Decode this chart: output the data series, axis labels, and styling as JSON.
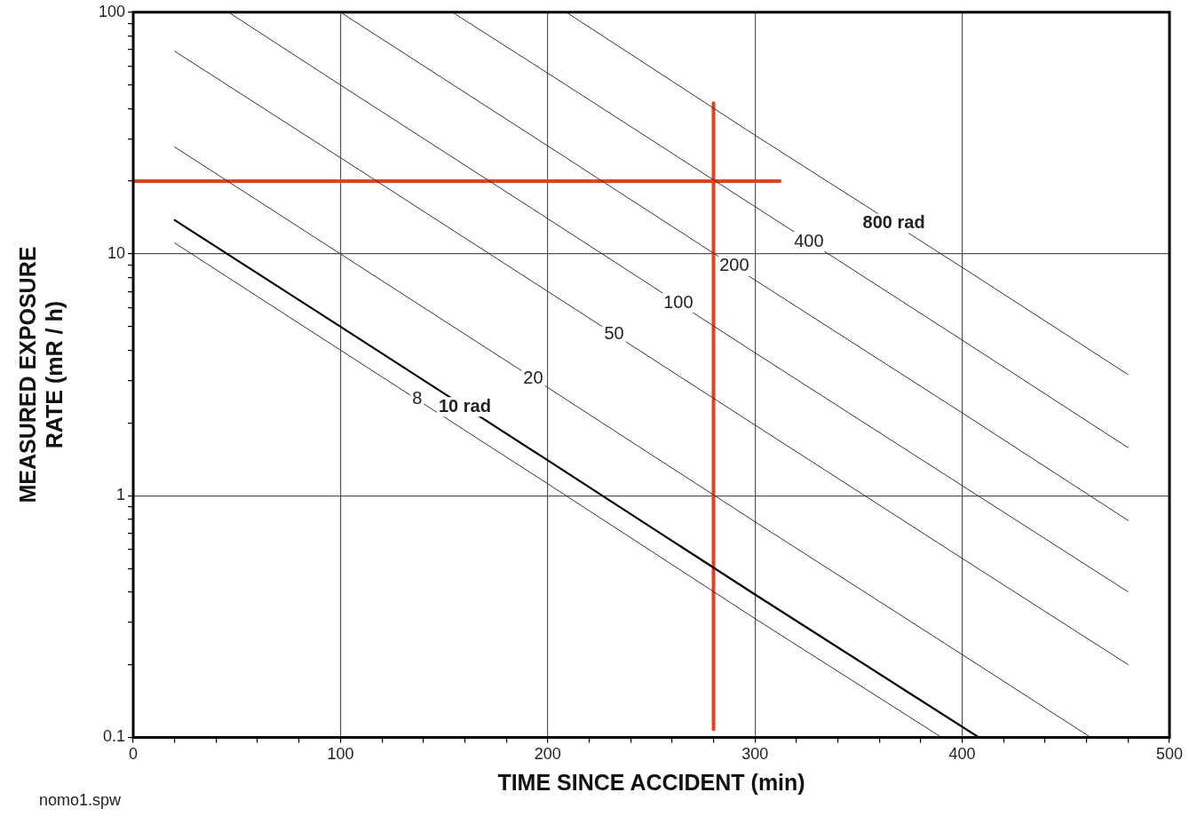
{
  "chart_data": {
    "type": "line",
    "xlabel": "TIME SINCE ACCIDENT (min)",
    "ylabel": "MEASURED EXPOSURE\nRATE (mR / h)",
    "log": "y",
    "grid": true,
    "legend": false,
    "marker": "none",
    "line_style": "solid",
    "xlim": [
      0,
      500
    ],
    "xticks": [
      0,
      {
        "value": 20,
        "label": null
      },
      {
        "value": 40,
        "label": null
      },
      {
        "value": 60,
        "label": null
      },
      {
        "value": 80,
        "label": null
      },
      100,
      {
        "value": 120,
        "label": null
      },
      {
        "value": 140,
        "label": null
      },
      {
        "value": 160,
        "label": null
      },
      {
        "value": 180,
        "label": null
      },
      200,
      {
        "value": 220,
        "label": null
      },
      {
        "value": 240,
        "label": null
      },
      {
        "value": 260,
        "label": null
      },
      {
        "value": 280,
        "label": null
      },
      300,
      {
        "value": 320,
        "label": null
      },
      {
        "value": 340,
        "label": null
      },
      {
        "value": 360,
        "label": null
      },
      {
        "value": 380,
        "label": null
      },
      400,
      {
        "value": 420,
        "label": null
      },
      {
        "value": 440,
        "label": null
      },
      {
        "value": 460,
        "label": null
      },
      {
        "value": 480,
        "label": null
      },
      500
    ],
    "ylim": [
      0.1,
      100
    ],
    "yticks": [
      0.1,
      {
        "value": 0.2,
        "label": null
      },
      {
        "value": 0.3,
        "label": null
      },
      {
        "value": 0.4,
        "label": null
      },
      {
        "value": 0.5,
        "label": null
      },
      {
        "value": 0.6,
        "label": null
      },
      {
        "value": 0.7,
        "label": null
      },
      {
        "value": 0.8,
        "label": null
      },
      {
        "value": 0.9,
        "label": null
      },
      1,
      {
        "value": 2,
        "label": null
      },
      {
        "value": 3,
        "label": null
      },
      {
        "value": 4,
        "label": null
      },
      {
        "value": 5,
        "label": null
      },
      {
        "value": 6,
        "label": null
      },
      {
        "value": 7,
        "label": null
      },
      {
        "value": 8,
        "label": null
      },
      {
        "value": 9,
        "label": null
      },
      10,
      {
        "value": 20,
        "label": null
      },
      {
        "value": 30,
        "label": null
      },
      {
        "value": 40,
        "label": null
      },
      {
        "value": 50,
        "label": null
      },
      {
        "value": 60,
        "label": null
      },
      {
        "value": 70,
        "label": null
      },
      {
        "value": 80,
        "label": null
      },
      {
        "value": 90,
        "label": null
      },
      100
    ],
    "series": [
      {
        "color": "#333333",
        "x": [
          20,
          100,
          200,
          300,
          390
        ],
        "values": [
          11.1,
          4,
          1.12,
          0.31,
          0.1
        ]
      },
      {
        "color": "#000000",
        "x": [
          20,
          100,
          200,
          300,
          408
        ],
        "values": [
          13.8,
          5,
          1.4,
          0.39,
          0.1
        ]
      },
      {
        "color": "#333333",
        "x": [
          20,
          100,
          200,
          300,
          400,
          462
        ],
        "values": [
          27.7,
          10,
          2.8,
          0.78,
          0.22,
          0.1
        ]
      },
      {
        "color": "#333333",
        "x": [
          20,
          100,
          200,
          300,
          400,
          480
        ],
        "values": [
          69,
          25,
          7,
          1.96,
          0.55,
          0.2
        ]
      },
      {
        "color": "#333333",
        "x": [
          46,
          100,
          200,
          300,
          400,
          480
        ],
        "values": [
          100,
          50,
          14,
          3.9,
          1.1,
          0.4
        ]
      },
      {
        "color": "#333333",
        "x": [
          100,
          200,
          300,
          400,
          480
        ],
        "values": [
          100,
          28,
          7.8,
          2.2,
          0.79
        ]
      },
      {
        "color": "#333333",
        "x": [
          154,
          200,
          300,
          400,
          480
        ],
        "values": [
          100,
          56,
          15.7,
          4.4,
          1.58
        ]
      },
      {
        "color": "#333333",
        "x": [
          209,
          300,
          400,
          480
        ],
        "values": [
          100,
          31,
          8.8,
          3.17
        ]
      },
      {
        "color": "#e8401c",
        "x": [
          0,
          312
        ],
        "values": [
          20,
          20
        ]
      },
      {
        "color": "#e8401c",
        "x": [
          280,
          280
        ],
        "values": [
          0.108,
          42
        ]
      }
    ],
    "annotations": [
      {
        "text": "8",
        "x": 137,
        "y": 2.5
      },
      {
        "text": "10 rad",
        "x": 160,
        "y": 2.33
      },
      {
        "text": "20",
        "x": 193,
        "y": 3.06
      },
      {
        "text": "50",
        "x": 232,
        "y": 4.66
      },
      {
        "text": "100",
        "x": 263,
        "y": 6.28
      },
      {
        "text": "200",
        "x": 290,
        "y": 8.9
      },
      {
        "text": "400",
        "x": 326,
        "y": 11.25
      },
      {
        "text": "800 rad",
        "x": 367,
        "y": 13.4
      },
      "nomo1.spw"
    ]
  }
}
